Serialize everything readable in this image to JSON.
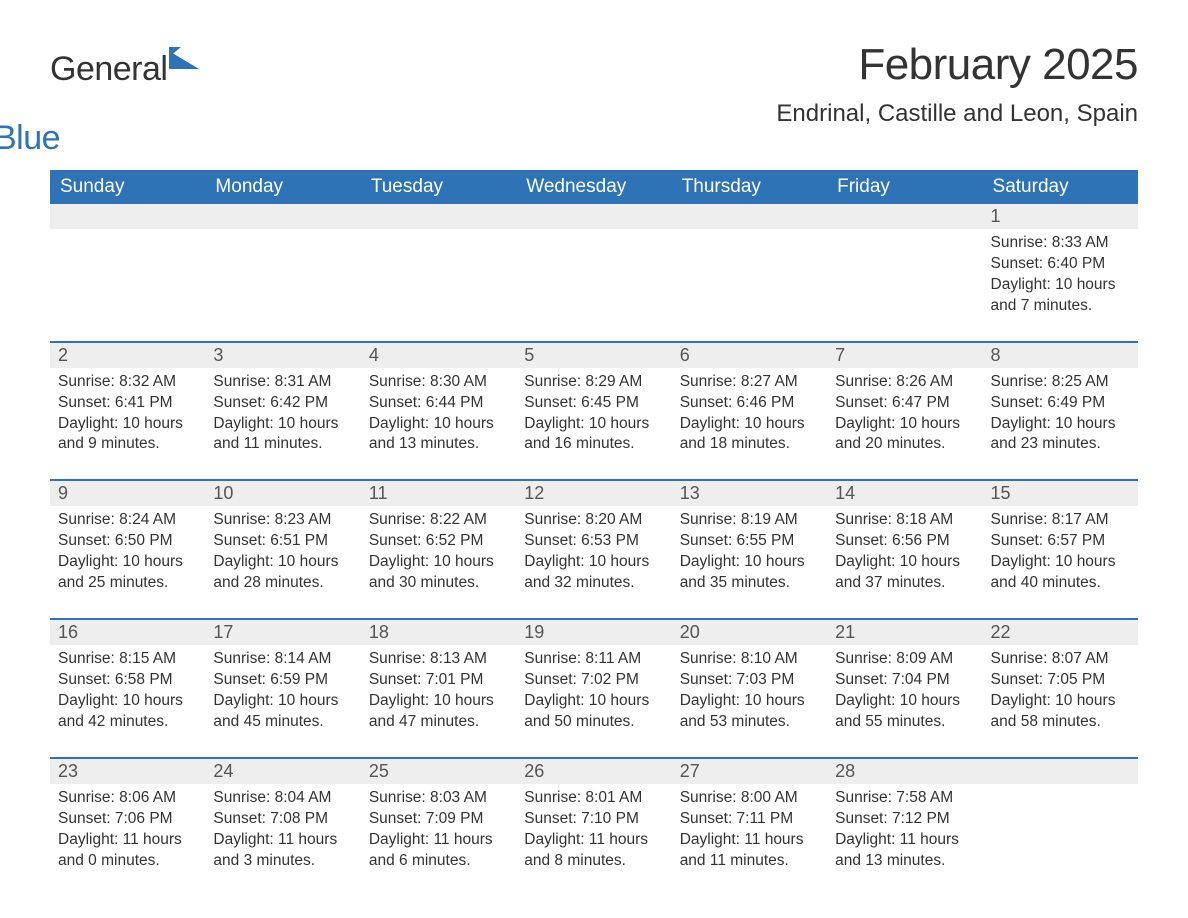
{
  "logo": {
    "text1": "General",
    "text2": "Blue",
    "icon_color": "#2d73b6"
  },
  "title": "February 2025",
  "location": "Endrinal, Castille and Leon, Spain",
  "colors": {
    "header_bg": "#2d73b6",
    "header_text": "#ffffff",
    "daynum_bg": "#eeeeee",
    "row_divider": "#2d73b6",
    "body_text": "#333333",
    "page_bg": "#ffffff"
  },
  "fonts": {
    "title_size_pt": 44,
    "location_size_pt": 24,
    "header_size_pt": 19,
    "daynum_size_pt": 18,
    "body_size_pt": 15.5
  },
  "day_headers": [
    "Sunday",
    "Monday",
    "Tuesday",
    "Wednesday",
    "Thursday",
    "Friday",
    "Saturday"
  ],
  "labels": {
    "sunrise": "Sunrise:",
    "sunset": "Sunset:",
    "daylight": "Daylight:"
  },
  "weeks": [
    [
      {
        "blank": true
      },
      {
        "blank": true
      },
      {
        "blank": true
      },
      {
        "blank": true
      },
      {
        "blank": true
      },
      {
        "blank": true
      },
      {
        "num": "1",
        "sunrise": "8:33 AM",
        "sunset": "6:40 PM",
        "daylight": "10 hours and 7 minutes."
      }
    ],
    [
      {
        "num": "2",
        "sunrise": "8:32 AM",
        "sunset": "6:41 PM",
        "daylight": "10 hours and 9 minutes."
      },
      {
        "num": "3",
        "sunrise": "8:31 AM",
        "sunset": "6:42 PM",
        "daylight": "10 hours and 11 minutes."
      },
      {
        "num": "4",
        "sunrise": "8:30 AM",
        "sunset": "6:44 PM",
        "daylight": "10 hours and 13 minutes."
      },
      {
        "num": "5",
        "sunrise": "8:29 AM",
        "sunset": "6:45 PM",
        "daylight": "10 hours and 16 minutes."
      },
      {
        "num": "6",
        "sunrise": "8:27 AM",
        "sunset": "6:46 PM",
        "daylight": "10 hours and 18 minutes."
      },
      {
        "num": "7",
        "sunrise": "8:26 AM",
        "sunset": "6:47 PM",
        "daylight": "10 hours and 20 minutes."
      },
      {
        "num": "8",
        "sunrise": "8:25 AM",
        "sunset": "6:49 PM",
        "daylight": "10 hours and 23 minutes."
      }
    ],
    [
      {
        "num": "9",
        "sunrise": "8:24 AM",
        "sunset": "6:50 PM",
        "daylight": "10 hours and 25 minutes."
      },
      {
        "num": "10",
        "sunrise": "8:23 AM",
        "sunset": "6:51 PM",
        "daylight": "10 hours and 28 minutes."
      },
      {
        "num": "11",
        "sunrise": "8:22 AM",
        "sunset": "6:52 PM",
        "daylight": "10 hours and 30 minutes."
      },
      {
        "num": "12",
        "sunrise": "8:20 AM",
        "sunset": "6:53 PM",
        "daylight": "10 hours and 32 minutes."
      },
      {
        "num": "13",
        "sunrise": "8:19 AM",
        "sunset": "6:55 PM",
        "daylight": "10 hours and 35 minutes."
      },
      {
        "num": "14",
        "sunrise": "8:18 AM",
        "sunset": "6:56 PM",
        "daylight": "10 hours and 37 minutes."
      },
      {
        "num": "15",
        "sunrise": "8:17 AM",
        "sunset": "6:57 PM",
        "daylight": "10 hours and 40 minutes."
      }
    ],
    [
      {
        "num": "16",
        "sunrise": "8:15 AM",
        "sunset": "6:58 PM",
        "daylight": "10 hours and 42 minutes."
      },
      {
        "num": "17",
        "sunrise": "8:14 AM",
        "sunset": "6:59 PM",
        "daylight": "10 hours and 45 minutes."
      },
      {
        "num": "18",
        "sunrise": "8:13 AM",
        "sunset": "7:01 PM",
        "daylight": "10 hours and 47 minutes."
      },
      {
        "num": "19",
        "sunrise": "8:11 AM",
        "sunset": "7:02 PM",
        "daylight": "10 hours and 50 minutes."
      },
      {
        "num": "20",
        "sunrise": "8:10 AM",
        "sunset": "7:03 PM",
        "daylight": "10 hours and 53 minutes."
      },
      {
        "num": "21",
        "sunrise": "8:09 AM",
        "sunset": "7:04 PM",
        "daylight": "10 hours and 55 minutes."
      },
      {
        "num": "22",
        "sunrise": "8:07 AM",
        "sunset": "7:05 PM",
        "daylight": "10 hours and 58 minutes."
      }
    ],
    [
      {
        "num": "23",
        "sunrise": "8:06 AM",
        "sunset": "7:06 PM",
        "daylight": "11 hours and 0 minutes."
      },
      {
        "num": "24",
        "sunrise": "8:04 AM",
        "sunset": "7:08 PM",
        "daylight": "11 hours and 3 minutes."
      },
      {
        "num": "25",
        "sunrise": "8:03 AM",
        "sunset": "7:09 PM",
        "daylight": "11 hours and 6 minutes."
      },
      {
        "num": "26",
        "sunrise": "8:01 AM",
        "sunset": "7:10 PM",
        "daylight": "11 hours and 8 minutes."
      },
      {
        "num": "27",
        "sunrise": "8:00 AM",
        "sunset": "7:11 PM",
        "daylight": "11 hours and 11 minutes."
      },
      {
        "num": "28",
        "sunrise": "7:58 AM",
        "sunset": "7:12 PM",
        "daylight": "11 hours and 13 minutes."
      },
      {
        "blank": true
      }
    ]
  ]
}
